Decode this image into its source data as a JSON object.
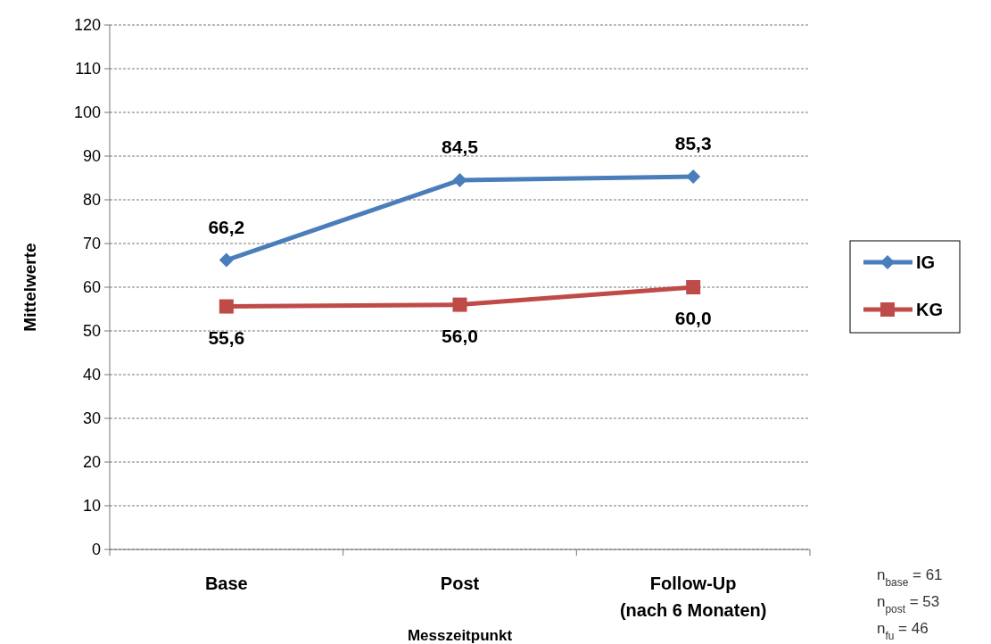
{
  "chart_data": {
    "type": "line",
    "xlabel": "Messzeitpunkt",
    "ylabel": "Mittelwerte",
    "categories": [
      "Base",
      "Post",
      "Follow-Up\n(nach 6 Monaten)"
    ],
    "series": [
      {
        "name": "IG",
        "color": "#4a7ebb",
        "marker": "diamond",
        "values": [
          66.2,
          84.5,
          85.3
        ],
        "value_labels": [
          "66,2",
          "84,5",
          "85,3"
        ]
      },
      {
        "name": "KG",
        "color": "#be4b48",
        "marker": "square",
        "values": [
          55.6,
          56.0,
          60.0
        ],
        "value_labels": [
          "55,6",
          "56,0",
          "60,0"
        ]
      }
    ],
    "ylim": [
      0,
      120
    ],
    "yticks": [
      0,
      10,
      20,
      30,
      40,
      50,
      60,
      70,
      80,
      90,
      100,
      110,
      120
    ],
    "grid": "y",
    "legend": "right",
    "annotations": [
      "n$_{base}$ = 61",
      "n$_{post}$ = 53",
      "n$_{fu}$ = 46"
    ]
  }
}
